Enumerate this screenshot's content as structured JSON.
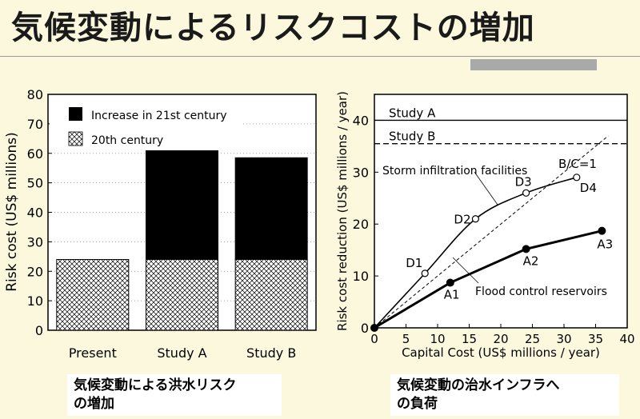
{
  "title": "気候変動によるリスクコストの増加",
  "captions": {
    "left_line1": "気候変動による洪水リスク",
    "left_line2": "の増加",
    "right_line1": "気候変動の治水インフラへ",
    "right_line2": "の負荷"
  },
  "chart_data": [
    {
      "type": "bar",
      "stacked": true,
      "categories": [
        "Present",
        "Study A",
        "Study B"
      ],
      "ylabel": "Risk cost (US$ millions)",
      "ylim": [
        0,
        80
      ],
      "yticks": [
        0,
        10,
        20,
        30,
        40,
        50,
        60,
        70,
        80
      ],
      "grid": "horizontal dotted",
      "legend_position": "top-left",
      "series": [
        {
          "name": "20th century",
          "values": [
            24,
            24,
            24
          ],
          "pattern": "crosshatch"
        },
        {
          "name": "Increase in 21st century",
          "values": [
            0,
            38,
            34.5
          ],
          "color": "#000000"
        }
      ]
    },
    {
      "type": "line",
      "xlabel": "Capital Cost (US$ millions / year)",
      "ylabel": "Risk cost reduction (US$ millions / year)",
      "xlim": [
        0,
        40
      ],
      "ylim": [
        0,
        45
      ],
      "xticks": [
        0,
        5,
        10,
        15,
        20,
        25,
        30,
        35,
        40
      ],
      "yticks": [
        0,
        10,
        20,
        30,
        40
      ],
      "reference_lines": [
        {
          "label": "Study A",
          "y": 40,
          "style": "solid"
        },
        {
          "label": "Study B",
          "y": 35.5,
          "style": "dashed"
        }
      ],
      "series": [
        {
          "name": "Storm infiltration facilities",
          "marker": "open-circle",
          "points": [
            {
              "label": "",
              "x": 0,
              "y": 0
            },
            {
              "label": "D1",
              "x": 8,
              "y": 10.5
            },
            {
              "label": "D2",
              "x": 16,
              "y": 21
            },
            {
              "label": "D3",
              "x": 24,
              "y": 26
            },
            {
              "label": "D4",
              "x": 32,
              "y": 29
            }
          ]
        },
        {
          "name": "Flood control reservoirs",
          "marker": "filled-circle",
          "points": [
            {
              "label": "",
              "x": 0,
              "y": 0
            },
            {
              "label": "A1",
              "x": 12,
              "y": 8.7
            },
            {
              "label": "A2",
              "x": 24,
              "y": 15.2
            },
            {
              "label": "A3",
              "x": 36,
              "y": 18.7
            }
          ]
        }
      ],
      "bc_line": {
        "label": "B/C=1",
        "from": [
          0,
          0
        ],
        "to": [
          37,
          37
        ],
        "style": "dashed"
      },
      "annotations": [
        "Storm infiltration facilities",
        "Flood control reservoirs"
      ]
    }
  ]
}
